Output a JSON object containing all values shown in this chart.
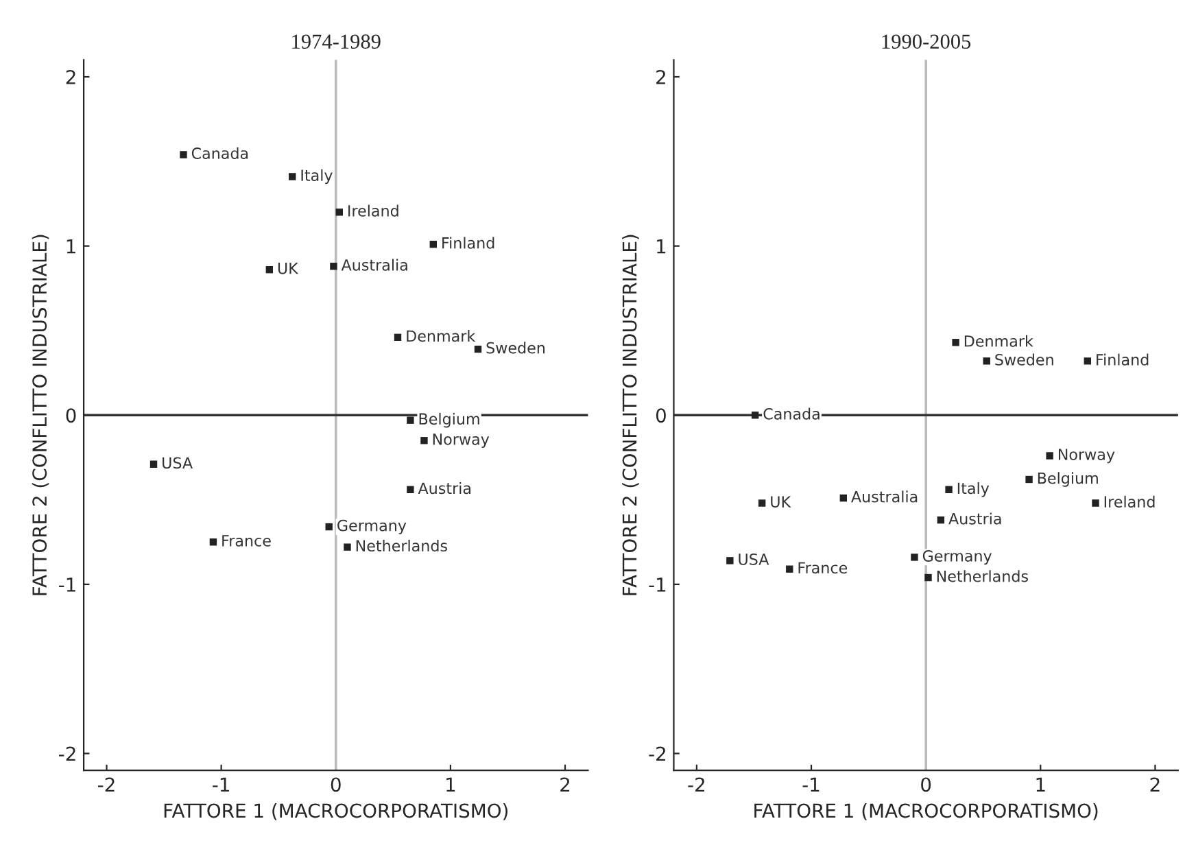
{
  "chart_data": [
    {
      "type": "scatter",
      "title": "1974-1989",
      "xlabel": "FATTORE 1 (MACROCORPORATISMO)",
      "ylabel": "FATTORE 2 (CONFLITTO INDUSTRIALE)",
      "series": [
        {
          "color": "#222222",
          "x": [
            -0.38,
            -1.33,
            0.03,
            0.85,
            -0.58,
            -0.02,
            0.54,
            1.24,
            0.65,
            0.77,
            -1.59,
            0.65,
            -0.06,
            -1.07,
            0.1
          ],
          "values": [
            1.41,
            1.54,
            1.2,
            1.01,
            0.86,
            0.88,
            0.46,
            0.39,
            -0.03,
            -0.15,
            -0.29,
            -0.44,
            -0.66,
            -0.75,
            -0.78
          ]
        }
      ],
      "annotations": [
        {
          "text": "Italy",
          "x": -0.38,
          "y": 1.41
        },
        {
          "text": "Canada",
          "x": -1.33,
          "y": 1.54
        },
        {
          "text": "Ireland",
          "x": 0.03,
          "y": 1.2
        },
        {
          "text": "Finland",
          "x": 0.85,
          "y": 1.01
        },
        {
          "text": "UK",
          "x": -0.58,
          "y": 0.86
        },
        {
          "text": "Australia",
          "x": -0.02,
          "y": 0.88
        },
        {
          "text": "Denmark",
          "x": 0.54,
          "y": 0.46
        },
        {
          "text": "Sweden",
          "x": 1.24,
          "y": 0.39
        },
        {
          "text": "Belgium",
          "x": 0.65,
          "y": -0.03
        },
        {
          "text": "Norway",
          "x": 0.77,
          "y": -0.15
        },
        {
          "text": "USA",
          "x": -1.59,
          "y": -0.29
        },
        {
          "text": "Austria",
          "x": 0.65,
          "y": -0.44
        },
        {
          "text": "Germany",
          "x": -0.06,
          "y": -0.66
        },
        {
          "text": "France",
          "x": -1.07,
          "y": -0.75
        },
        {
          "text": "Netherlands",
          "x": 0.1,
          "y": -0.78
        }
      ],
      "xlim": [
        -2.2,
        2.2
      ],
      "ylim": [
        -2.1,
        2.1
      ],
      "xticks": [
        -2,
        -1,
        0,
        1,
        2
      ],
      "yticks": [
        -2,
        -1,
        0,
        1,
        2
      ],
      "marker": "square",
      "grid": false,
      "legend": false,
      "ref_lines": [
        {
          "axis": "x",
          "value": 0,
          "color": "#bbbbbb"
        },
        {
          "axis": "y",
          "value": 0,
          "color": "#333333"
        }
      ]
    },
    {
      "type": "scatter",
      "title": "1990-2005",
      "xlabel": "FATTORE 1 (MACROCORPORATISMO)",
      "ylabel": "FATTORE 2 (CONFLITTO INDUSTRIALE)",
      "series": [
        {
          "color": "#222222",
          "x": [
            0.26,
            0.53,
            1.41,
            -1.49,
            1.08,
            0.9,
            0.2,
            -1.43,
            -0.72,
            1.48,
            0.13,
            -1.71,
            -1.19,
            -0.1,
            0.02
          ],
          "values": [
            0.43,
            0.32,
            0.32,
            0.0,
            -0.24,
            -0.38,
            -0.44,
            -0.52,
            -0.49,
            -0.52,
            -0.62,
            -0.86,
            -0.91,
            -0.84,
            -0.96
          ]
        }
      ],
      "annotations": [
        {
          "text": "Denmark",
          "x": 0.26,
          "y": 0.43
        },
        {
          "text": "Sweden",
          "x": 0.53,
          "y": 0.32
        },
        {
          "text": "Finland",
          "x": 1.41,
          "y": 0.32
        },
        {
          "text": "Canada",
          "x": -1.49,
          "y": 0.0
        },
        {
          "text": "Norway",
          "x": 1.08,
          "y": -0.24
        },
        {
          "text": "Belgium",
          "x": 0.9,
          "y": -0.38
        },
        {
          "text": "Italy",
          "x": 0.2,
          "y": -0.44
        },
        {
          "text": "UK",
          "x": -1.43,
          "y": -0.52
        },
        {
          "text": "Australia",
          "x": -0.72,
          "y": -0.49
        },
        {
          "text": "Ireland",
          "x": 1.48,
          "y": -0.52
        },
        {
          "text": "Austria",
          "x": 0.13,
          "y": -0.62
        },
        {
          "text": "USA",
          "x": -1.71,
          "y": -0.86
        },
        {
          "text": "France",
          "x": -1.19,
          "y": -0.91
        },
        {
          "text": "Germany",
          "x": -0.1,
          "y": -0.84
        },
        {
          "text": "Netherlands",
          "x": 0.02,
          "y": -0.96
        }
      ],
      "xlim": [
        -2.2,
        2.2
      ],
      "ylim": [
        -2.1,
        2.1
      ],
      "xticks": [
        -2,
        -1,
        0,
        1,
        2
      ],
      "yticks": [
        -2,
        -1,
        0,
        1,
        2
      ],
      "marker": "square",
      "grid": false,
      "legend": false,
      "ref_lines": [
        {
          "axis": "x",
          "value": 0,
          "color": "#bbbbbb"
        },
        {
          "axis": "y",
          "value": 0,
          "color": "#333333"
        }
      ]
    }
  ]
}
